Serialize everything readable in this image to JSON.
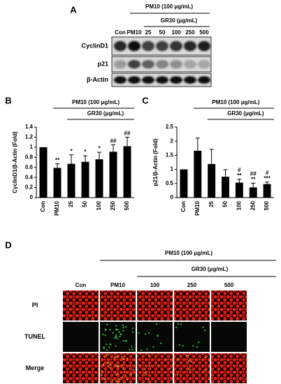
{
  "panel_a": {
    "label": "A",
    "treatment": "PM10 (100 μg/mL)",
    "dose_group": "GR30 (μg/mL)",
    "lanes": [
      "Con",
      "PM10",
      "25",
      "50",
      "100",
      "250",
      "500"
    ],
    "rows": [
      "CyclinD1",
      "p21",
      "β-Actin"
    ]
  },
  "chart_data": [
    {
      "type": "bar",
      "panel_label": "B",
      "treatment": "PM10 (100 μg/mL)",
      "dose_group": "GR30 (μg/mL)",
      "ylabel": "CyclinD1/β-Actin (Fold)",
      "categories": [
        "Con",
        "PM10",
        "25",
        "50",
        "100",
        "250",
        "500"
      ],
      "values": [
        1,
        0.59,
        0.67,
        0.71,
        0.76,
        0.91,
        1.02
      ],
      "errors": [
        0,
        0.08,
        0.18,
        0.12,
        0.14,
        0.14,
        0.18
      ],
      "annotations": [
        null,
        "**",
        "*",
        "*",
        "*",
        "##",
        "##"
      ],
      "color": "#000000",
      "ylim": [
        0,
        1.4
      ],
      "yticks": [
        0,
        0.2,
        0.4,
        0.6,
        0.8,
        1,
        1.2,
        1.4
      ]
    },
    {
      "type": "bar",
      "panel_label": "C",
      "treatment": "PM10 (100 μg/mL)",
      "dose_group": "GR30 (μg/mL)",
      "ylabel": "p21/β-Actin (Fold)",
      "categories": [
        "Con",
        "PM10",
        "25",
        "50",
        "100",
        "250",
        "500"
      ],
      "values": [
        1,
        1.66,
        1.19,
        0.74,
        0.53,
        0.36,
        0.48
      ],
      "errors": [
        0,
        0.45,
        0.52,
        0.25,
        0.12,
        0.15,
        0.07
      ],
      "annotations_top": [
        null,
        null,
        null,
        null,
        "#",
        "##",
        "#"
      ],
      "annotations": [
        null,
        null,
        null,
        null,
        "**",
        "**",
        "***"
      ],
      "color": "#000000",
      "ylim": [
        0,
        2.5
      ],
      "yticks": [
        0,
        0.5,
        1,
        1.5,
        2,
        2.5
      ]
    }
  ],
  "panel_d": {
    "label": "D",
    "treatment": "PM10 (100 μg/mL)",
    "dose_group": "GR30 (μg/mL)",
    "columns": [
      "Con",
      "PM10",
      "100",
      "250",
      "500"
    ],
    "rows": [
      "PI",
      "TUNEL",
      "Merge"
    ]
  }
}
